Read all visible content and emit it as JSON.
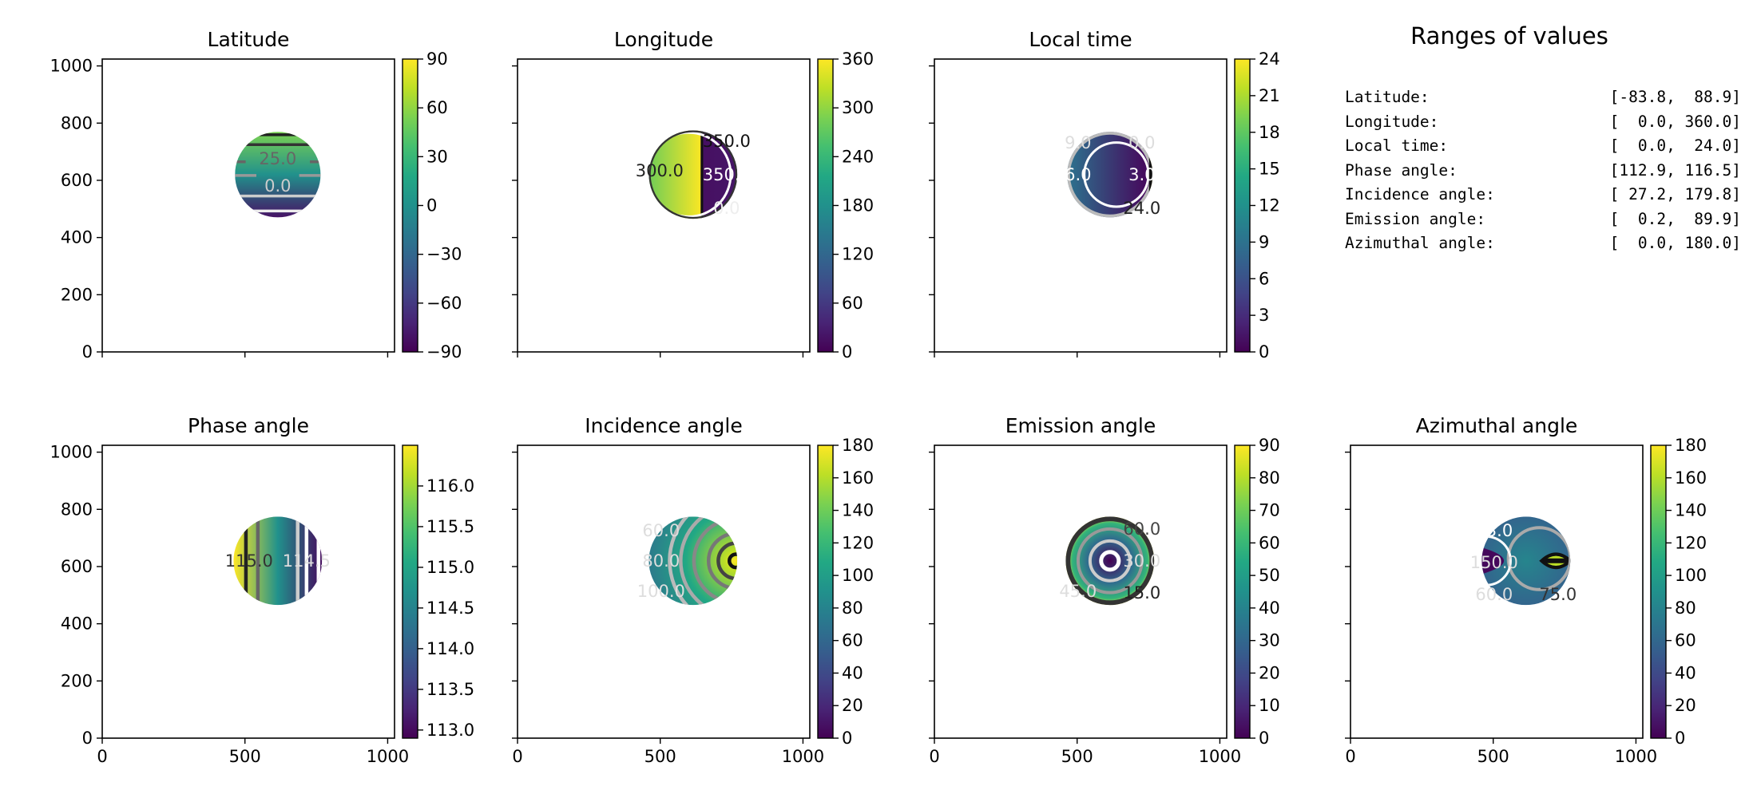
{
  "ranges_panel": {
    "title": "Ranges of values",
    "rows": [
      {
        "label": "Latitude:",
        "value": "[-83.8,  88.9]"
      },
      {
        "label": "Longitude:",
        "value": "[  0.0, 360.0]"
      },
      {
        "label": "Local time:",
        "value": "[  0.0,  24.0]"
      },
      {
        "label": "Phase angle:",
        "value": "[112.9, 116.5]"
      },
      {
        "label": "Incidence angle:",
        "value": "[ 27.2, 179.8]"
      },
      {
        "label": "Emission angle:",
        "value": "[  0.2,  89.9]"
      },
      {
        "label": "Azimuthal angle:",
        "value": "[  0.0, 180.0]"
      }
    ]
  },
  "chart_data": [
    {
      "type": "heatmap",
      "title": "Latitude",
      "colormap": "viridis",
      "xlim": [
        0,
        1024
      ],
      "ylim": [
        0,
        1024
      ],
      "xticks": [
        0,
        500,
        1000
      ],
      "yticks": [
        0,
        200,
        400,
        600,
        800,
        1000
      ],
      "show_xticklabels": false,
      "show_yticklabels": true,
      "disk": {
        "center": [
          615,
          620
        ],
        "radius": 150
      },
      "colorbar": {
        "range": [
          -90,
          90
        ],
        "ticks": [
          -90,
          -60,
          -30,
          0,
          30,
          60,
          90
        ],
        "tick_labels": [
          "−90",
          "−60",
          "−30",
          "0",
          "30",
          "60",
          "90"
        ]
      },
      "contour_labels": [
        "25.0",
        "0.0"
      ]
    },
    {
      "type": "heatmap",
      "title": "Longitude",
      "colormap": "viridis",
      "xlim": [
        0,
        1024
      ],
      "ylim": [
        0,
        1024
      ],
      "xticks": [
        0,
        500,
        1000
      ],
      "yticks": [
        0,
        200,
        400,
        600,
        800,
        1000
      ],
      "show_xticklabels": false,
      "show_yticklabels": false,
      "disk": {
        "center": [
          615,
          620
        ],
        "radius": 155
      },
      "colorbar": {
        "range": [
          0,
          360
        ],
        "ticks": [
          0,
          60,
          120,
          180,
          240,
          300,
          360
        ],
        "tick_labels": [
          "0",
          "60",
          "120",
          "180",
          "240",
          "300",
          "360"
        ]
      },
      "contour_labels": [
        "300.0",
        "350.0",
        "350.0",
        "0.0"
      ]
    },
    {
      "type": "heatmap",
      "title": "Local time",
      "colormap": "viridis",
      "xlim": [
        0,
        1024
      ],
      "ylim": [
        0,
        1024
      ],
      "xticks": [
        0,
        500,
        1000
      ],
      "yticks": [
        0,
        200,
        400,
        600,
        800,
        1000
      ],
      "show_xticklabels": false,
      "show_yticklabels": false,
      "disk": {
        "center": [
          615,
          620
        ],
        "radius": 150
      },
      "colorbar": {
        "range": [
          0,
          24
        ],
        "ticks": [
          0,
          3,
          6,
          9,
          12,
          15,
          18,
          21,
          24
        ],
        "tick_labels": [
          "0",
          "3",
          "6",
          "9",
          "12",
          "15",
          "18",
          "21",
          "24"
        ]
      },
      "contour_labels": [
        "9.0",
        "6.0",
        "3.0",
        "0.0",
        "24.0"
      ]
    },
    {
      "type": "heatmap",
      "title": "Phase angle",
      "colormap": "viridis",
      "xlim": [
        0,
        1024
      ],
      "ylim": [
        0,
        1024
      ],
      "xticks": [
        0,
        500,
        1000
      ],
      "yticks": [
        0,
        200,
        400,
        600,
        800,
        1000
      ],
      "show_xticklabels": true,
      "show_yticklabels": true,
      "disk": {
        "center": [
          615,
          620
        ],
        "radius": 155
      },
      "colorbar": {
        "range": [
          112.9,
          116.5
        ],
        "ticks": [
          113.0,
          113.5,
          114.0,
          114.5,
          115.0,
          115.5,
          116.0
        ],
        "tick_labels": [
          "113.0",
          "113.5",
          "114.0",
          "114.5",
          "115.0",
          "115.5",
          "116.0"
        ]
      },
      "contour_labels": [
        "115.0",
        "114.5"
      ]
    },
    {
      "type": "heatmap",
      "title": "Incidence angle",
      "colormap": "viridis",
      "xlim": [
        0,
        1024
      ],
      "ylim": [
        0,
        1024
      ],
      "xticks": [
        0,
        500,
        1000
      ],
      "yticks": [
        0,
        200,
        400,
        600,
        800,
        1000
      ],
      "show_xticklabels": true,
      "show_yticklabels": false,
      "disk": {
        "center": [
          615,
          620
        ],
        "radius": 155
      },
      "colorbar": {
        "range": [
          0,
          180
        ],
        "ticks": [
          0,
          20,
          40,
          60,
          80,
          100,
          120,
          140,
          160,
          180
        ],
        "tick_labels": [
          "0",
          "20",
          "40",
          "60",
          "80",
          "100",
          "120",
          "140",
          "160",
          "180"
        ]
      },
      "contour_labels": [
        "60.0",
        "80.0",
        "100.0"
      ]
    },
    {
      "type": "heatmap",
      "title": "Emission angle",
      "colormap": "viridis",
      "xlim": [
        0,
        1024
      ],
      "ylim": [
        0,
        1024
      ],
      "xticks": [
        0,
        500,
        1000
      ],
      "yticks": [
        0,
        200,
        400,
        600,
        800,
        1000
      ],
      "show_xticklabels": true,
      "show_yticklabels": false,
      "disk": {
        "center": [
          615,
          620
        ],
        "radius": 155
      },
      "colorbar": {
        "range": [
          0,
          90
        ],
        "ticks": [
          0,
          10,
          20,
          30,
          40,
          50,
          60,
          70,
          80,
          90
        ],
        "tick_labels": [
          "0",
          "10",
          "20",
          "30",
          "40",
          "50",
          "60",
          "70",
          "80",
          "90"
        ]
      },
      "contour_labels": [
        "60.0",
        "45.0",
        "30.0",
        "15.0"
      ]
    },
    {
      "type": "heatmap",
      "title": "Azimuthal angle",
      "colormap": "viridis",
      "xlim": [
        0,
        1024
      ],
      "ylim": [
        0,
        1024
      ],
      "xticks": [
        0,
        500,
        1000
      ],
      "yticks": [
        0,
        200,
        400,
        600,
        800,
        1000
      ],
      "show_xticklabels": true,
      "show_yticklabels": false,
      "disk": {
        "center": [
          615,
          620
        ],
        "radius": 155
      },
      "colorbar": {
        "range": [
          0,
          180
        ],
        "ticks": [
          0,
          20,
          40,
          60,
          80,
          100,
          120,
          140,
          160,
          180
        ],
        "tick_labels": [
          "0",
          "20",
          "40",
          "60",
          "80",
          "100",
          "120",
          "140",
          "160",
          "180"
        ]
      },
      "contour_labels": [
        "23.0",
        "150.0",
        "60.0",
        "75.0"
      ]
    }
  ]
}
